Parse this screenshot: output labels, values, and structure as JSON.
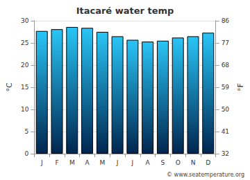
{
  "chart_data": {
    "type": "bar",
    "title": "Itacaré water temp",
    "categories": [
      "J",
      "F",
      "M",
      "A",
      "M",
      "J",
      "J",
      "A",
      "S",
      "O",
      "N",
      "D"
    ],
    "values": [
      27.7,
      28.1,
      28.6,
      28.4,
      27.5,
      26.5,
      25.7,
      25.3,
      25.5,
      26.2,
      26.5,
      27.3
    ],
    "color": "#29c5f6",
    "ylabel": "°C",
    "y2label": "°F",
    "ylim": [
      0,
      30
    ],
    "yticks": [
      0,
      5,
      10,
      15,
      20,
      25,
      30
    ],
    "y2lim": [
      32,
      86
    ],
    "y2ticks": [
      32,
      41,
      50,
      59,
      68,
      77,
      86
    ],
    "grid": true,
    "annotation": "© www.seatemperature.org"
  }
}
